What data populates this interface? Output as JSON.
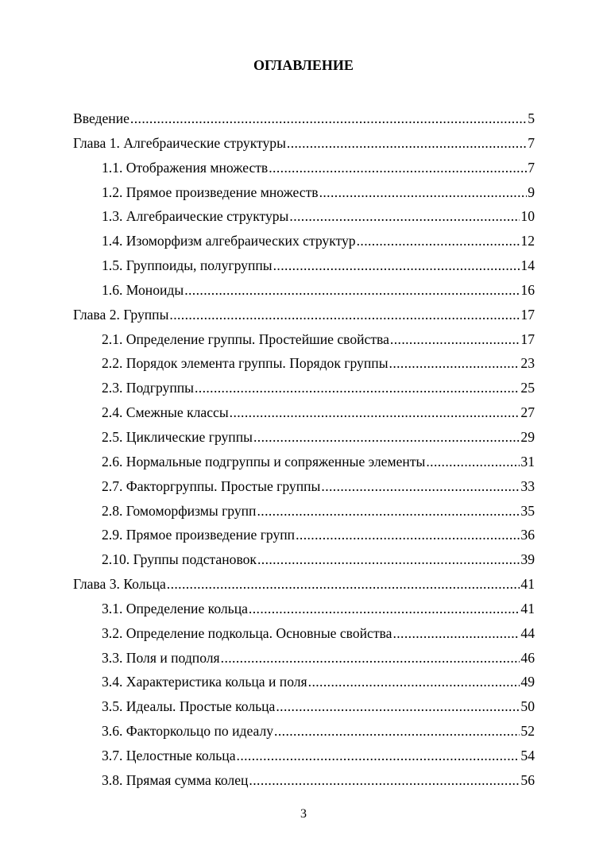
{
  "title": "ОГЛАВЛЕНИЕ",
  "entries": [
    {
      "label": "Введение",
      "page": "5",
      "level": 0
    },
    {
      "label": "Глава 1. Алгебраические структуры",
      "page": "7",
      "level": 0
    },
    {
      "label": "1.1. Отображения множеств",
      "page": "7",
      "level": 1
    },
    {
      "label": "1.2. Прямое произведение множеств",
      "page": "9",
      "level": 1
    },
    {
      "label": "1.3. Алгебраические структуры",
      "page": "10",
      "level": 1
    },
    {
      "label": "1.4. Изоморфизм алгебраических структур",
      "page": "12",
      "level": 1
    },
    {
      "label": "1.5. Группоиды, полугруппы",
      "page": "14",
      "level": 1
    },
    {
      "label": "1.6. Моноиды",
      "page": "16",
      "level": 1
    },
    {
      "label": "Глава 2. Группы",
      "page": "17",
      "level": 0
    },
    {
      "label": "2.1. Определение группы. Простейшие свойства",
      "page": "17",
      "level": 1
    },
    {
      "label": "2.2. Порядок элемента группы. Порядок группы",
      "page": "23",
      "level": 1
    },
    {
      "label": "2.3. Подгруппы",
      "page": "25",
      "level": 1
    },
    {
      "label": "2.4. Смежные классы",
      "page": "27",
      "level": 1
    },
    {
      "label": "2.5. Циклические группы",
      "page": "29",
      "level": 1
    },
    {
      "label": "2.6. Нормальные подгруппы и сопряженные элементы",
      "page": "31",
      "level": 1
    },
    {
      "label": "2.7. Факторгруппы. Простые группы",
      "page": "33",
      "level": 1
    },
    {
      "label": "2.8. Гомоморфизмы групп",
      "page": "35",
      "level": 1
    },
    {
      "label": "2.9. Прямое произведение групп",
      "page": "36",
      "level": 1
    },
    {
      "label": "2.10. Группы подстановок",
      "page": "39",
      "level": 1
    },
    {
      "label": "Глава 3. Кольца",
      "page": "41",
      "level": 0
    },
    {
      "label": "3.1. Определение кольца",
      "page": "41",
      "level": 1
    },
    {
      "label": "3.2. Определение подкольца. Основные свойства",
      "page": "44",
      "level": 1
    },
    {
      "label": "3.3. Поля и подполя",
      "page": "46",
      "level": 1
    },
    {
      "label": "3.4. Характеристика кольца и поля",
      "page": "49",
      "level": 1
    },
    {
      "label": "3.5. Идеалы. Простые кольца",
      "page": "50",
      "level": 1
    },
    {
      "label": "3.6. Факторкольцо по идеалу",
      "page": "52",
      "level": 1
    },
    {
      "label": "3.7. Целостные кольца",
      "page": "54",
      "level": 1
    },
    {
      "label": "3.8. Прямая сумма колец",
      "page": "56",
      "level": 1
    }
  ],
  "page_number": "3"
}
